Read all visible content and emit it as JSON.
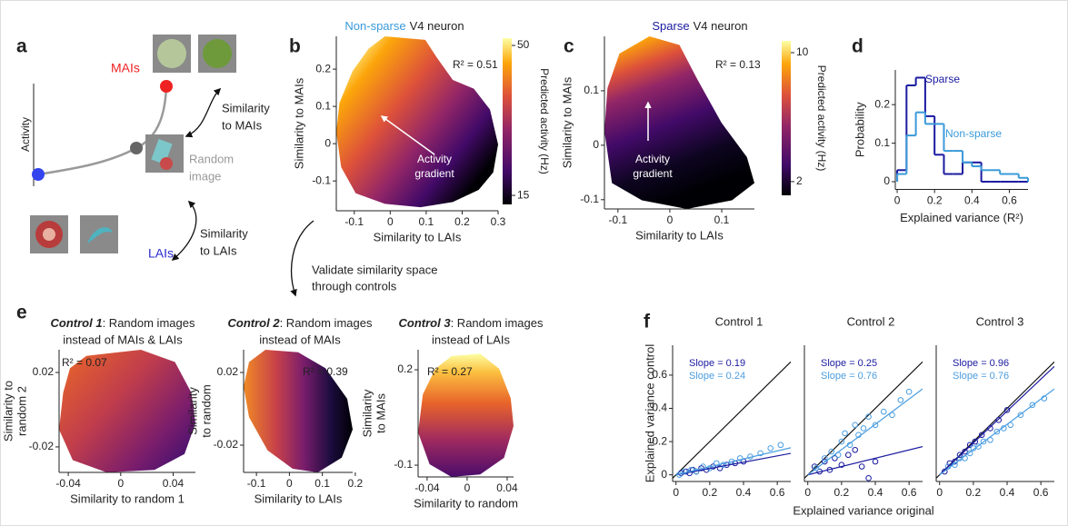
{
  "panel_letters": [
    "a",
    "b",
    "c",
    "d",
    "e",
    "f"
  ],
  "diagram": {
    "mais": "MAIs",
    "lais": "LAIs",
    "activity": "Activity",
    "random_image": [
      "Random",
      "image"
    ],
    "similarity_mais": [
      "Similarity",
      "to MAIs"
    ],
    "similarity_lais": [
      "Similarity",
      "to LAIs"
    ]
  },
  "validate": [
    "Validate similarity space",
    "through controls"
  ],
  "chart_data": [
    {
      "type": "heatmap",
      "title_emph": "Non-sparse",
      "title_emph_color": "#3a9ad9",
      "title": "V4 neuron",
      "xlabel": "Similarity to LAIs",
      "ylabel": [
        "Similarity to MAIs"
      ],
      "xlim": [
        -0.15,
        0.3
      ],
      "ylim": [
        -0.18,
        0.288
      ],
      "xticks": [
        -0.1,
        0,
        0.1,
        0.2,
        0.3
      ],
      "yticks": [
        -0.1,
        0,
        0.1,
        0.2
      ],
      "annotation": "R² = 0.51",
      "arrow_label": [
        "Activity",
        "gradient"
      ],
      "colorbar_label": "Predicted activity (Hz)",
      "clim": [
        12.9,
        51.7
      ],
      "cticks": [
        15,
        50
      ]
    },
    {
      "type": "heatmap",
      "title_emph": "Sparse",
      "title_emph_color": "#1a1aa0",
      "title": "V4 neuron",
      "xlabel": "Similarity to LAIs",
      "ylabel": [
        "Similarity to MAIs"
      ],
      "xlim": [
        -0.126,
        0.163
      ],
      "ylim": [
        -0.117,
        0.2
      ],
      "xticks": [
        -0.1,
        0,
        0.1
      ],
      "yticks": [
        -0.1,
        0,
        0.1
      ],
      "annotation": "R² = 0.13",
      "arrow_label": [
        "Activity",
        "gradient"
      ],
      "colorbar_label": "Predicted activity (Hz)",
      "clim": [
        1.15,
        10.73
      ],
      "cticks": [
        2,
        10
      ]
    },
    {
      "type": "heatmap",
      "title_emph": "Control 1",
      "title": ": Random images",
      "subtitle": "instead of MAIs & LAIs",
      "xlabel": "Similarity to random 1",
      "ylabel": [
        "Similarity to",
        "random 2"
      ],
      "xlim": [
        -0.047,
        0.057
      ],
      "ylim": [
        -0.0337,
        0.0322
      ],
      "xticks": [
        -0.04,
        0,
        0.04
      ],
      "yticks": [
        -0.02,
        0.02
      ],
      "annotation": "R² = 0.07"
    },
    {
      "type": "heatmap",
      "title_emph": "Control 2",
      "title": ": Random images",
      "subtitle": "instead of MAIs",
      "xlabel": "Similarity to LAIs",
      "ylabel": [
        "Similarity",
        "to random"
      ],
      "xlim": [
        -0.139,
        0.192
      ],
      "ylim": [
        -0.035,
        0.0325
      ],
      "xticks": [
        -0.1,
        0,
        0.1,
        0.2
      ],
      "yticks": [
        -0.02,
        0.02
      ],
      "annotation": "R² = 0.39"
    },
    {
      "type": "heatmap",
      "title_emph": "Control 3",
      "title": ": Random images",
      "subtitle": "instead of LAIs",
      "xlabel": "Similarity to random",
      "ylabel": [
        "Similarity",
        "to MAIs"
      ],
      "xlim": [
        -0.049,
        0.0464
      ],
      "ylim": [
        -0.137,
        0.263
      ],
      "xticks": [
        -0.04,
        0,
        0.04
      ],
      "yticks": [
        -0.1,
        0.2
      ],
      "annotation": "R² = 0.27"
    },
    {
      "type": "histogram",
      "xlabel": "Explained variance (R²)",
      "ylabel": "Probability",
      "xlim": [
        -0.01,
        0.7
      ],
      "ylim": [
        -0.02,
        0.29
      ],
      "xticks": [
        0,
        0.2,
        0.4,
        0.6
      ],
      "yticks": [
        0,
        0.1,
        0.2
      ],
      "bins": [
        0,
        0.05,
        0.1,
        0.15,
        0.2,
        0.25,
        0.3,
        0.35,
        0.4,
        0.45,
        0.5,
        0.55,
        0.6,
        0.65,
        0.7
      ],
      "series": [
        {
          "name": "Sparse",
          "color": "#1a1aa0",
          "values": [
            0.03,
            0.25,
            0.27,
            0.17,
            0.07,
            0.02,
            0.02,
            0.05,
            0.05,
            0,
            0,
            0,
            0,
            0
          ]
        },
        {
          "name": "Non-sparse",
          "color": "#3a9ad9",
          "values": [
            0.02,
            0.12,
            0.18,
            0.15,
            0.15,
            0.08,
            0.08,
            0.05,
            0.04,
            0.03,
            0.03,
            0.02,
            0.02,
            0.01
          ]
        }
      ]
    },
    {
      "type": "scatter",
      "title": "Control 1",
      "ylabel": "Explained variance control",
      "xlim": [
        -0.02,
        0.68
      ],
      "ylim": [
        -0.04,
        0.78
      ],
      "xticks": [
        0,
        0.2,
        0.4,
        0.6
      ],
      "yticks": [
        0,
        0.2,
        0.4,
        0.6
      ],
      "identity_line": true,
      "series": [
        {
          "color": "#1a1aa0",
          "slope": 0.19,
          "slope_label": "Slope = 0.19",
          "x": [
            0.03,
            0.06,
            0.08,
            0.1,
            0.12,
            0.15,
            0.18,
            0.22,
            0.26,
            0.3,
            0.35,
            0.4
          ],
          "values": [
            0.01,
            0.02,
            0.01,
            0.03,
            0.02,
            0.04,
            0.03,
            0.05,
            0.04,
            0.06,
            0.07,
            0.08
          ]
        },
        {
          "color": "#4a9de0",
          "slope": 0.24,
          "slope_label": "Slope = 0.24",
          "x": [
            0.02,
            0.05,
            0.09,
            0.12,
            0.16,
            0.2,
            0.24,
            0.28,
            0.33,
            0.38,
            0.44,
            0.5,
            0.56,
            0.62
          ],
          "values": [
            0,
            0.02,
            0.03,
            0.02,
            0.05,
            0.04,
            0.07,
            0.06,
            0.08,
            0.1,
            0.11,
            0.13,
            0.16,
            0.18
          ]
        }
      ]
    },
    {
      "type": "scatter",
      "title": "Control 2",
      "xlabel": "Explained variance original",
      "xlim": [
        -0.02,
        0.68
      ],
      "ylim": [
        -0.04,
        0.78
      ],
      "xticks": [
        0,
        0.2,
        0.4,
        0.6
      ],
      "identity_line": true,
      "series": [
        {
          "color": "#1a1aa0",
          "slope": 0.25,
          "slope_label": "Slope = 0.25",
          "x": [
            0.04,
            0.07,
            0.1,
            0.13,
            0.16,
            0.2,
            0.24,
            0.28,
            0.32,
            0.36,
            0.4
          ],
          "values": [
            0.05,
            0.02,
            0.08,
            0.03,
            0.1,
            0.06,
            0.12,
            0.15,
            0.05,
            -0.02,
            0.08
          ]
        },
        {
          "color": "#4a9de0",
          "slope": 0.76,
          "slope_label": "Slope = 0.76",
          "x": [
            0.05,
            0.1,
            0.14,
            0.18,
            0.2,
            0.22,
            0.25,
            0.28,
            0.3,
            0.33,
            0.36,
            0.4,
            0.45,
            0.5,
            0.55,
            0.6
          ],
          "values": [
            0.04,
            0.1,
            0.14,
            0.12,
            0.2,
            0.25,
            0.18,
            0.3,
            0.24,
            0.28,
            0.35,
            0.3,
            0.38,
            0.36,
            0.45,
            0.5
          ]
        }
      ]
    },
    {
      "type": "scatter",
      "title": "Control 3",
      "xlim": [
        -0.02,
        0.68
      ],
      "ylim": [
        -0.04,
        0.78
      ],
      "xticks": [
        0,
        0.2,
        0.4,
        0.6
      ],
      "identity_line": true,
      "series": [
        {
          "color": "#1a1aa0",
          "slope": 0.96,
          "slope_label": "Slope = 0.96",
          "x": [
            0.03,
            0.06,
            0.09,
            0.12,
            0.15,
            0.18,
            0.21,
            0.25,
            0.3,
            0.35,
            0.4
          ],
          "values": [
            0.02,
            0.07,
            0.08,
            0.12,
            0.14,
            0.18,
            0.2,
            0.24,
            0.28,
            0.33,
            0.39
          ]
        },
        {
          "color": "#4a9de0",
          "slope": 0.76,
          "slope_label": "Slope = 0.76",
          "x": [
            0.05,
            0.09,
            0.12,
            0.15,
            0.18,
            0.2,
            0.23,
            0.26,
            0.3,
            0.34,
            0.38,
            0.42,
            0.48,
            0.55,
            0.62
          ],
          "values": [
            0.05,
            0.06,
            0.1,
            0.1,
            0.13,
            0.16,
            0.17,
            0.2,
            0.21,
            0.26,
            0.28,
            0.3,
            0.36,
            0.42,
            0.46
          ]
        }
      ]
    }
  ]
}
